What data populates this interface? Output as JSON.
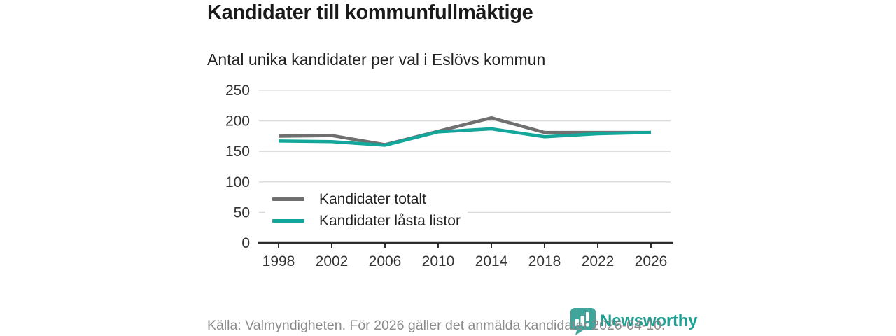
{
  "page": {
    "title": "Kandidater till kommunfullmäktige",
    "subtitle": "Antal unika kandidater per val i Eslövs kommun",
    "source_note": "Källa: Valmyndigheten. För 2026 gäller det anmälda kandidater 2026-04-10.",
    "brand": {
      "name": "Newsworthy",
      "logo_icon": "speech-bubble-bar-chart-icon",
      "color": "#1ea192"
    }
  },
  "chart_data": {
    "type": "line",
    "title": "Kandidater till kommunfullmäktige",
    "subtitle": "Antal unika kandidater per val i Eslövs kommun",
    "x": [
      1998,
      2002,
      2006,
      2010,
      2014,
      2018,
      2022,
      2026
    ],
    "series": [
      {
        "name": "Kandidater totalt",
        "color": "#6f6f6f",
        "values": [
          175,
          176,
          161,
          183,
          205,
          181,
          181,
          181
        ]
      },
      {
        "name": "Kandidater låsta listor",
        "color": "#13a79b",
        "values": [
          167,
          166,
          160,
          182,
          187,
          174,
          179,
          181
        ]
      }
    ],
    "ylim": [
      0,
      250
    ],
    "yticks": [
      0,
      50,
      100,
      150,
      200,
      250
    ],
    "xlabel": "",
    "ylabel": "",
    "grid": "horizontal",
    "legend_position": "inside-bottom-left",
    "colors": {
      "gridline": "#dadada",
      "axis": "#2d2d2d",
      "tick_text": "#333333"
    }
  }
}
